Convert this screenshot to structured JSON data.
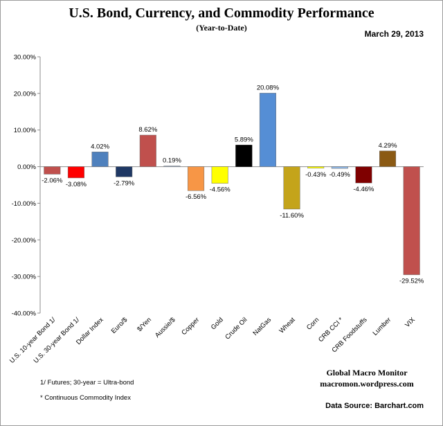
{
  "header": {
    "title": "U.S. Bond, Currency, and Commodity Performance",
    "subtitle": "(Year-to-Date)",
    "date": "March 29, 2013"
  },
  "footer": {
    "note1": "1/   Futures; 30-year = Ultra-bond",
    "note2": "* Continuous Commodity Index",
    "brand_line1": "Global Macro Monitor",
    "brand_line2": "macromon.wordpress.com",
    "source": "Data Source:  Barchart.com"
  },
  "chart_data": {
    "type": "bar",
    "title": "U.S. Bond, Currency, and Commodity Performance",
    "subtitle": "(Year-to-Date)",
    "xlabel": "",
    "ylabel": "",
    "ylim": [
      -40,
      30
    ],
    "yticks": [
      30,
      20,
      10,
      0,
      -10,
      -20,
      -30,
      -40
    ],
    "ytick_labels": [
      "30.00%",
      "20.00%",
      "10.00%",
      "0.00%",
      "-10.00%",
      "-20.00%",
      "-30.00%",
      "-40.00%"
    ],
    "categories": [
      "U.S. 10-year Bond 1/",
      "U.S. 30-year Bond 1/",
      "Dollar Index",
      "Euro/$",
      "$/Yen",
      "Aussie/$",
      "Copper",
      "Gold",
      "Crude Oil",
      "NatGas",
      "Wheat",
      "Corn",
      "CRB CCI *",
      "CRB Foodstuffs",
      "Lumber",
      "VIX"
    ],
    "values": [
      -2.06,
      -3.08,
      4.02,
      -2.79,
      8.62,
      0.19,
      -6.56,
      -4.56,
      5.89,
      20.08,
      -11.6,
      -0.43,
      -0.49,
      -4.46,
      4.29,
      -29.52
    ],
    "value_labels": [
      "-2.06%",
      "-3.08%",
      "4.02%",
      "-2.79%",
      "8.62%",
      "0.19%",
      "-6.56%",
      "-4.56%",
      "5.89%",
      "20.08%",
      "-11.60%",
      "-0.43%",
      "-0.49%",
      "-4.46%",
      "4.29%",
      "-29.52%"
    ],
    "colors": [
      "#C0504D",
      "#FF0000",
      "#4F81BD",
      "#1F3864",
      "#C0504D",
      "#95B3D7",
      "#F79646",
      "#FFFF00",
      "#000000",
      "#558ED5",
      "#C4A41A",
      "#FFFF00",
      "#8DB4E2",
      "#7F0000",
      "#8B5A14",
      "#C0504D"
    ],
    "grid": false,
    "legend": "none"
  }
}
